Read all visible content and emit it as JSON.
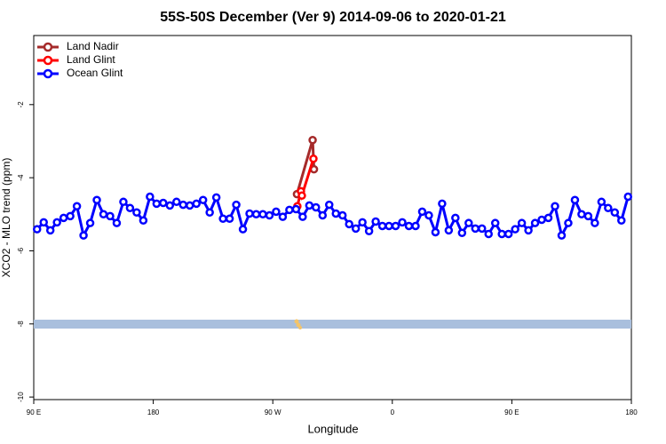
{
  "chart_data": {
    "type": "line",
    "title": "55S-50S December (Ver 9)   2014-09-06 to 2020-01-21",
    "x_label": "Longitude",
    "y_label": "XCO2 - MLO trend (ppm)",
    "xlim": [
      90,
      540
    ],
    "xticks": [
      {
        "value": 90,
        "label": "90 E"
      },
      180,
      {
        "value": 270,
        "label": "90 W"
      },
      {
        "value": 360,
        "label": "0"
      },
      {
        "value": 450,
        "label": "90 E"
      },
      {
        "value": 540,
        "label": "180"
      }
    ],
    "ylim": [
      -10.07,
      -0.11
    ],
    "yticks": [
      -2,
      -4,
      -6,
      -8,
      -10
    ],
    "legend": "top-left",
    "series": [
      {
        "name": "Land Nadir",
        "color": "#a52a2a",
        "x": [
          288.2,
          300.0,
          301.0
        ],
        "values": [
          -4.45,
          -2.97,
          -3.77
        ]
      },
      {
        "name": "Land Glint",
        "color": "#ff0000",
        "x": [
          288.5,
          291.2,
          291.9,
          300.6
        ],
        "values": [
          -4.78,
          -4.37,
          -4.49,
          -3.48
        ]
      },
      {
        "name": "Ocean Glint",
        "color": "#0000ff",
        "x": [
          92.5,
          97.5,
          102.5,
          107.5,
          112.5,
          117.5,
          122.5,
          127.5,
          132.5,
          137.5,
          142.5,
          147.5,
          152.5,
          157.5,
          162.5,
          167.5,
          172.5,
          177.5,
          182.5,
          187.5,
          192.5,
          197.5,
          202.5,
          207.5,
          212.5,
          217.5,
          222.5,
          227.5,
          232.5,
          237.5,
          242.5,
          247.5,
          252.5,
          257.5,
          262.5,
          267.5,
          272.5,
          277.5,
          282.5,
          287.5,
          292.5,
          297.5,
          302.5,
          307.5,
          312.5,
          317.5,
          322.5,
          327.5,
          332.5,
          337.5,
          342.5,
          347.5,
          352.5,
          357.5,
          362.5,
          367.5,
          372.5,
          377.5,
          382.5,
          387.5,
          392.5,
          397.5,
          402.5,
          407.5,
          412.5,
          417.5,
          422.5,
          427.5,
          432.5,
          437.5,
          442.5,
          447.5,
          452.5,
          457.5,
          462.5,
          467.5,
          472.5,
          477.5,
          482.5,
          487.5,
          492.5,
          497.5,
          502.5,
          507.5,
          512.5,
          517.5,
          522.5,
          527.5,
          532.5,
          537.5
        ],
        "values": [
          -5.41,
          -5.22,
          -5.44,
          -5.22,
          -5.1,
          -5.05,
          -4.78,
          -5.58,
          -5.24,
          -4.61,
          -5.0,
          -5.05,
          -5.24,
          -4.66,
          -4.83,
          -4.95,
          -5.17,
          -4.52,
          -4.71,
          -4.69,
          -4.76,
          -4.66,
          -4.74,
          -4.76,
          -4.71,
          -4.61,
          -4.95,
          -4.54,
          -5.12,
          -5.12,
          -4.74,
          -5.41,
          -4.98,
          -5.0,
          -5.0,
          -5.03,
          -4.93,
          -5.07,
          -4.88,
          -4.86,
          -5.07,
          -4.76,
          -4.81,
          -5.03,
          -4.74,
          -4.98,
          -5.03,
          -5.27,
          -5.39,
          -5.22,
          -5.46,
          -5.2,
          -5.32,
          -5.32,
          -5.32,
          -5.22,
          -5.32,
          -5.32,
          -4.93,
          -5.03,
          -5.49,
          -4.71,
          -5.44,
          -5.1,
          -5.51,
          -5.24,
          -5.39,
          -5.39,
          -5.54,
          -5.24,
          -5.54,
          -5.54,
          -5.41,
          -5.24,
          -5.44,
          -5.24,
          -5.15,
          -5.1,
          -4.78,
          -5.58,
          -5.24,
          -4.61,
          -5.0,
          -5.05,
          -5.24,
          -4.66,
          -4.83,
          -4.95,
          -5.17,
          -4.52
        ]
      }
    ]
  }
}
